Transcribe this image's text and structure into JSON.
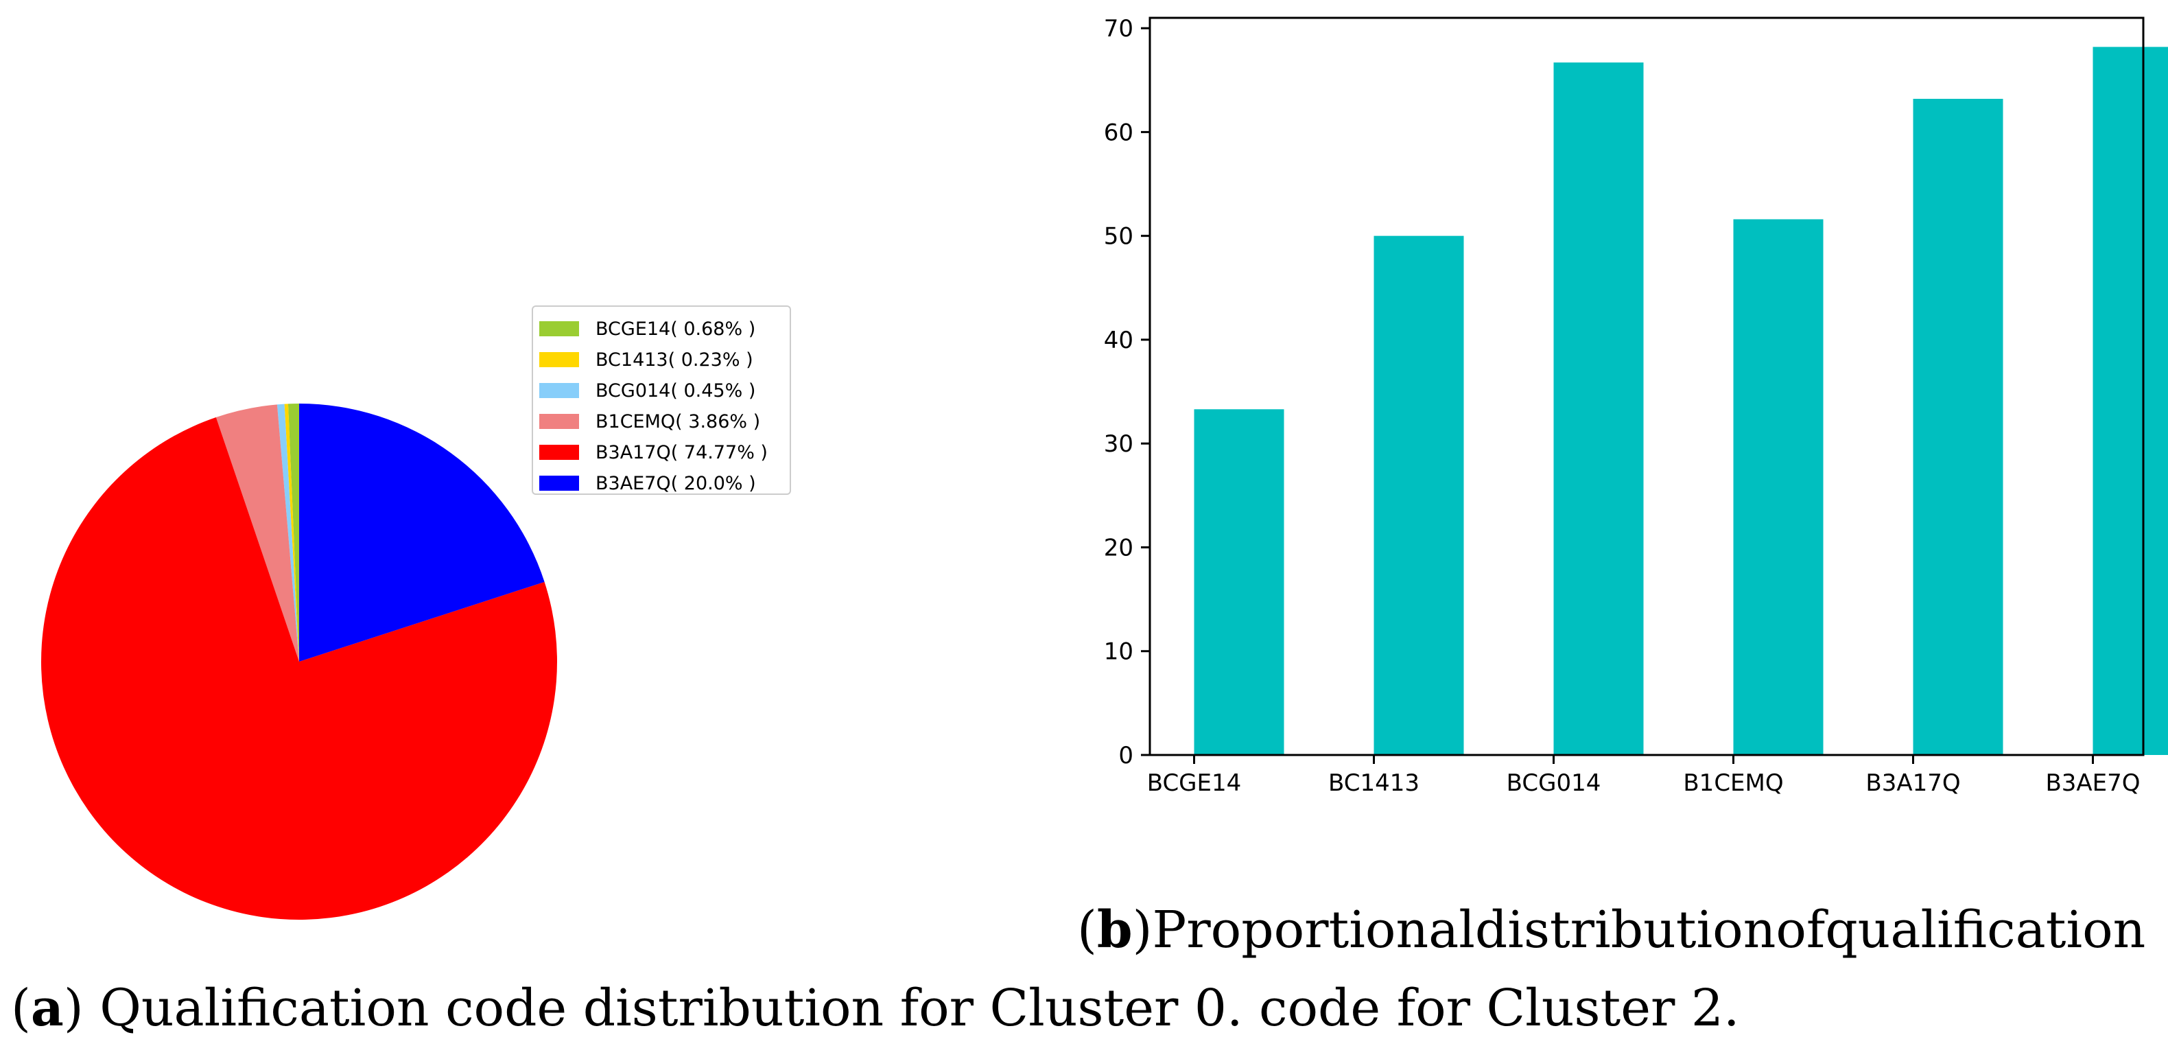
{
  "chart_data": [
    {
      "type": "pie",
      "title": "",
      "labels": [
        "BCGE14",
        "BC1413",
        "BCG014",
        "B1CEMQ",
        "B3A17Q",
        "B3AE7Q"
      ],
      "values": [
        0.68,
        0.23,
        0.45,
        3.86,
        74.77,
        20.0
      ],
      "legend_labels": [
        "BCGE14( 0.68% )",
        "BC1413( 0.23% )",
        "BCG014( 0.45% )",
        "B1CEMQ( 3.86% )",
        "B3A17Q( 74.77% )",
        "B3AE7Q( 20.0% )"
      ],
      "colors": [
        "#9acd32",
        "#ffd700",
        "#87cefa",
        "#f08080",
        "#ff0000",
        "#0000ff"
      ],
      "start_angle_deg": 90,
      "direction": "counterclockwise",
      "legend_position": "upper-right"
    },
    {
      "type": "bar",
      "title": "",
      "xlabel": "",
      "ylabel": "",
      "categories": [
        "BCGE14",
        "BC1413",
        "BCG014",
        "B1CEMQ",
        "B3A17Q",
        "B3AE7Q"
      ],
      "values": [
        33.3,
        50.0,
        66.7,
        51.6,
        63.2,
        68.2
      ],
      "ylim": [
        0,
        71
      ],
      "yticks": [
        0,
        10,
        20,
        30,
        40,
        50,
        60,
        70
      ],
      "bar_color": "#00bfbf",
      "grid": false
    }
  ],
  "captions": {
    "b_label": "b",
    "b_line1_words": [
      "Proportional",
      "distribution",
      "of",
      "qualification"
    ],
    "a_label": "a",
    "a_text": "Qualification code distribution for Cluster 0. code for Cluster 2."
  }
}
